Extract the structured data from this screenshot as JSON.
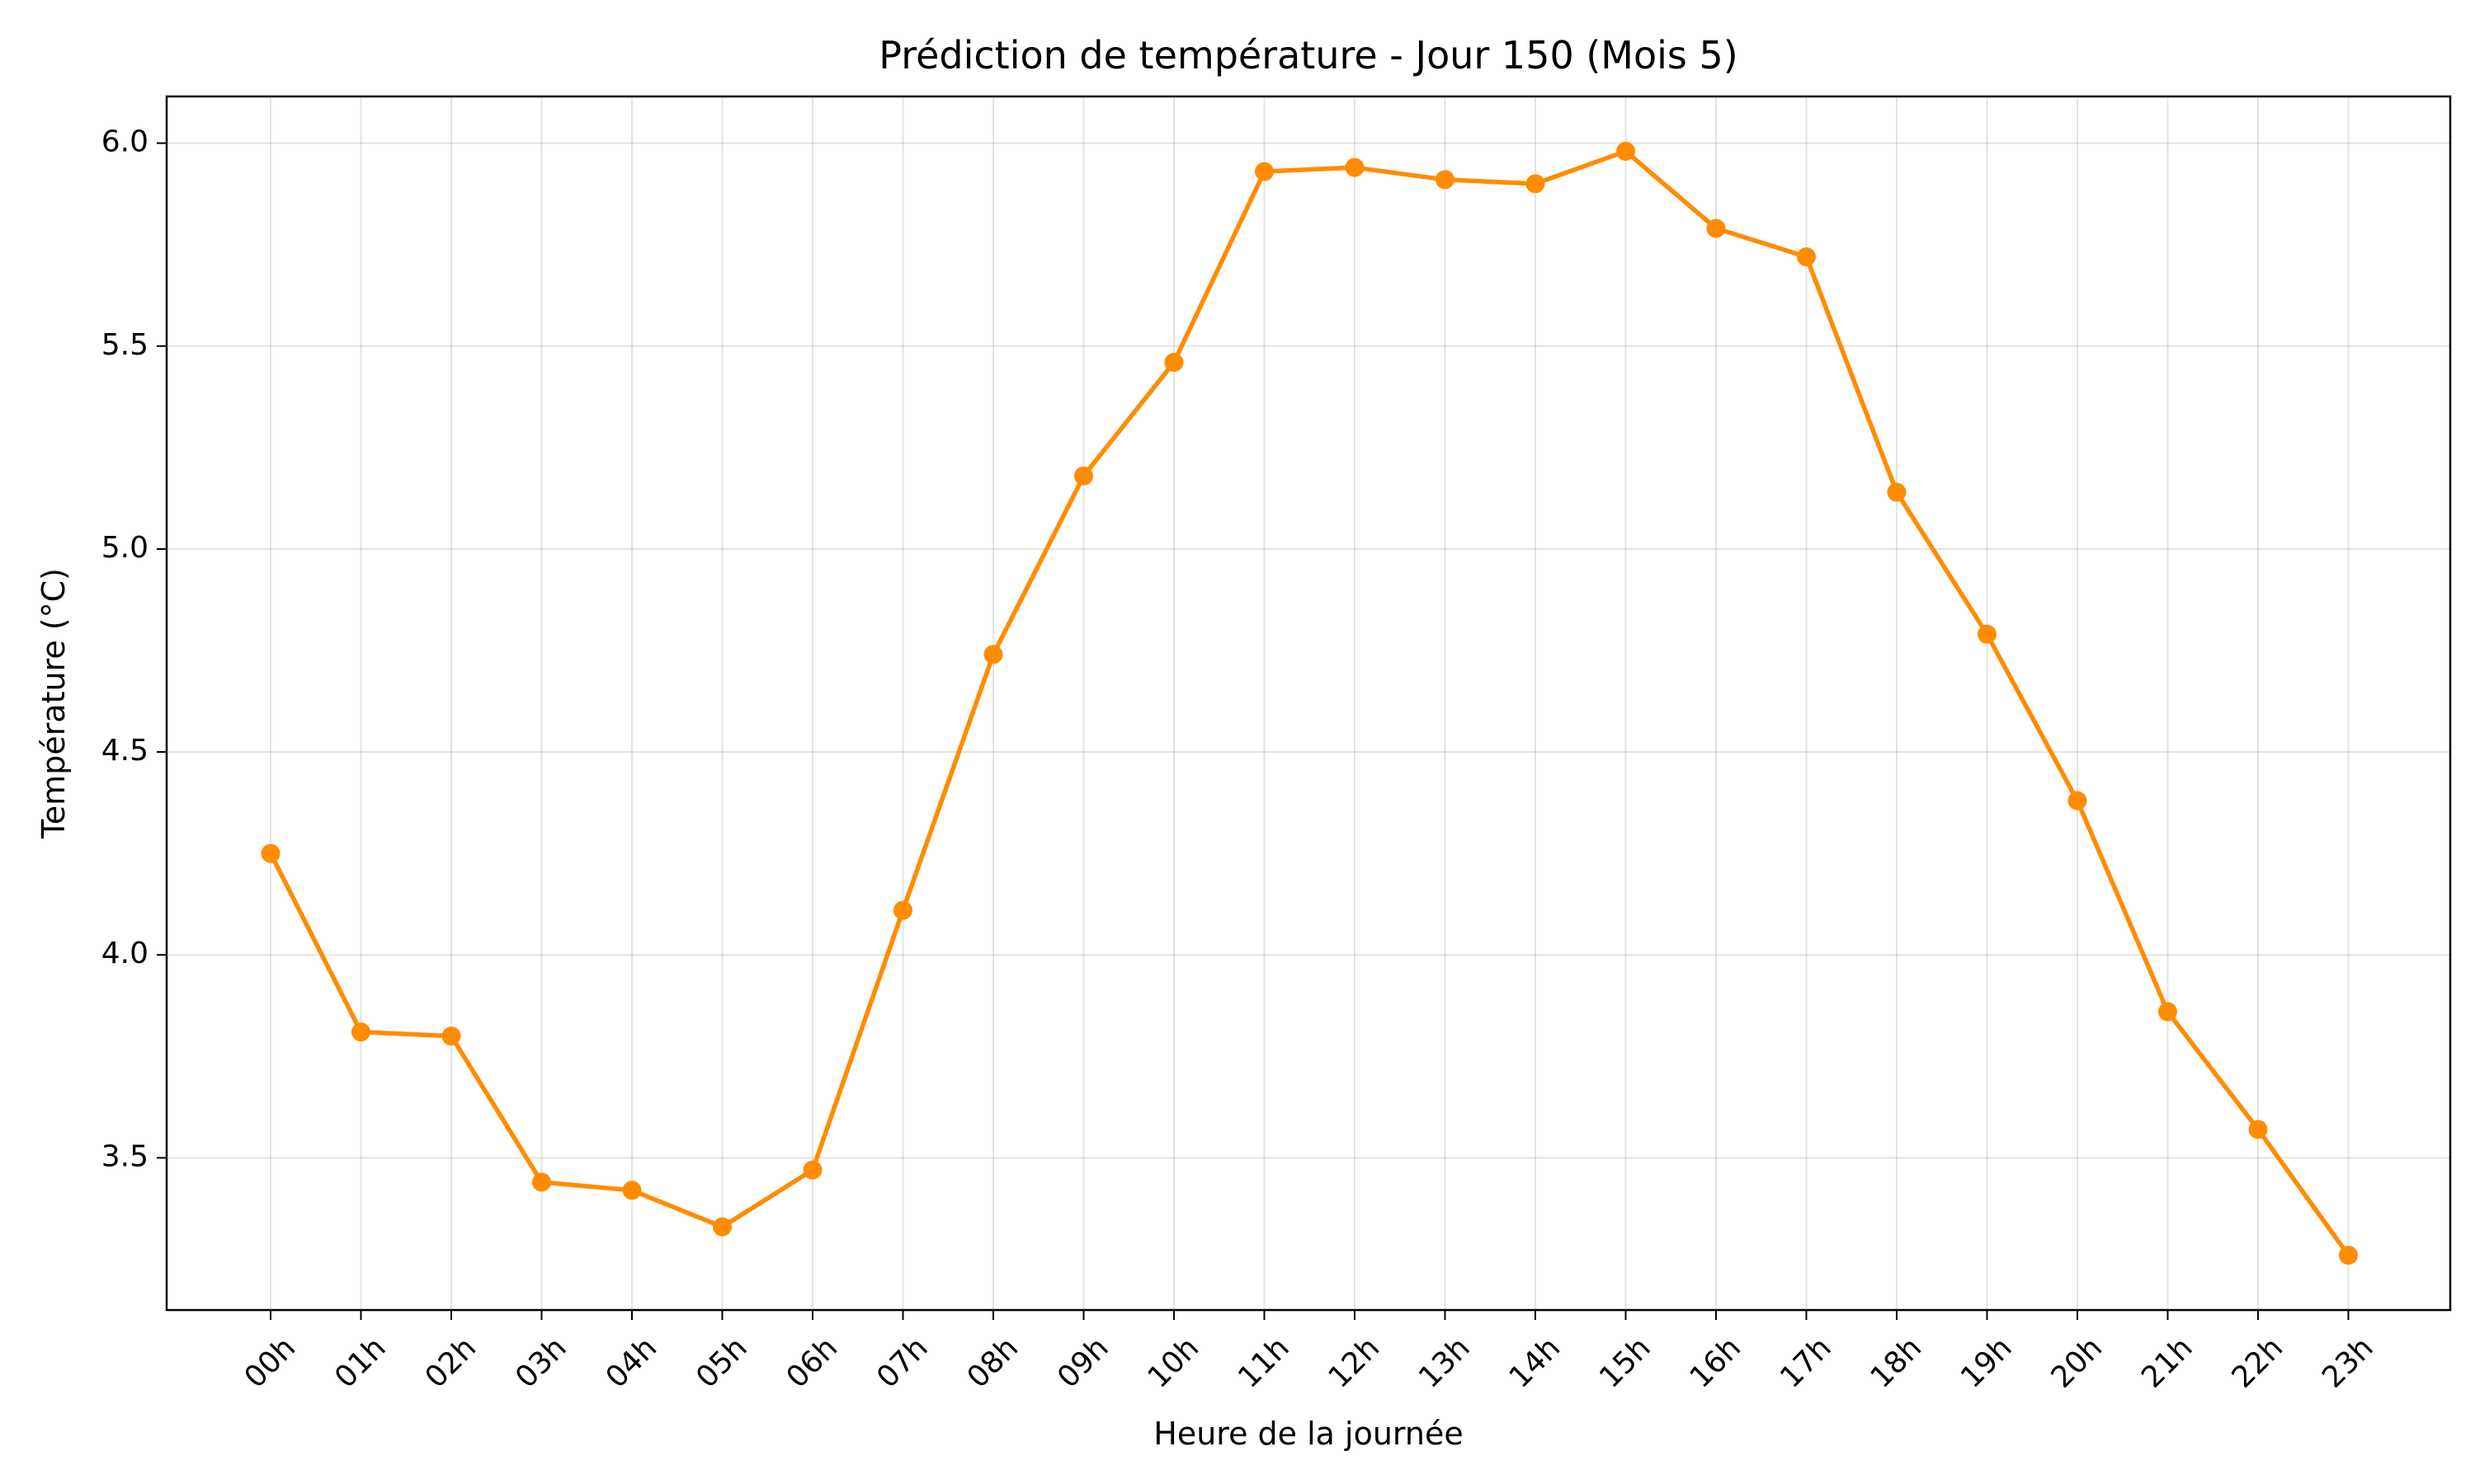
{
  "chart_data": {
    "type": "line",
    "title": "Prédiction de température - Jour 150 (Mois 5)",
    "xlabel": "Heure de la journée",
    "ylabel": "Température (°C)",
    "categories": [
      "00h",
      "01h",
      "02h",
      "03h",
      "04h",
      "05h",
      "06h",
      "07h",
      "08h",
      "09h",
      "10h",
      "11h",
      "12h",
      "13h",
      "14h",
      "15h",
      "16h",
      "17h",
      "18h",
      "19h",
      "20h",
      "21h",
      "22h",
      "23h"
    ],
    "series": [
      {
        "values": [
          4.25,
          3.81,
          3.8,
          3.44,
          3.42,
          3.33,
          3.47,
          4.11,
          4.74,
          5.18,
          5.46,
          5.93,
          5.94,
          5.91,
          5.9,
          5.98,
          5.79,
          5.72,
          5.14,
          4.79,
          4.38,
          3.86,
          3.57,
          3.26
        ],
        "color": "#ff8c00"
      }
    ],
    "yticks": [
      3.5,
      4.0,
      4.5,
      5.0,
      5.5,
      6.0
    ],
    "ytick_labels": [
      "3.5",
      "4.0",
      "4.5",
      "5.0",
      "5.5",
      "6.0"
    ],
    "ylim": [
      3.125,
      6.115
    ],
    "grid": true,
    "legend": "none",
    "marker": "circle"
  }
}
